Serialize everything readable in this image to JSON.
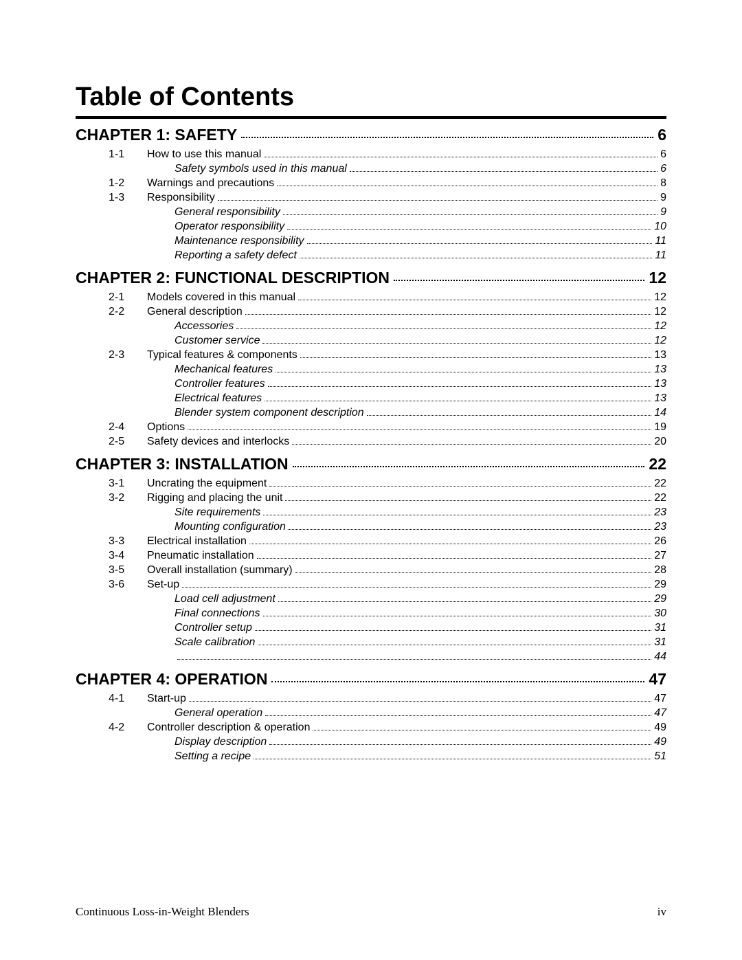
{
  "title": "Table of Contents",
  "chapters": [
    {
      "label": "CHAPTER 1: SAFETY",
      "page": "6",
      "items": [
        {
          "type": "section",
          "num": "1-1",
          "label": "How to use this manual",
          "page": "6"
        },
        {
          "type": "sub",
          "label": "Safety symbols used in this manual",
          "page": "6"
        },
        {
          "type": "section",
          "num": "1-2",
          "label": "Warnings and precautions",
          "page": "8"
        },
        {
          "type": "section",
          "num": "1-3",
          "label": "Responsibility",
          "page": "9"
        },
        {
          "type": "sub",
          "label": "General responsibility",
          "page": "9"
        },
        {
          "type": "sub",
          "label": "Operator responsibility",
          "page": "10"
        },
        {
          "type": "sub",
          "label": "Maintenance responsibility",
          "page": "11"
        },
        {
          "type": "sub",
          "label": "Reporting a safety defect",
          "page": "11"
        }
      ]
    },
    {
      "label": "CHAPTER 2:  FUNCTIONAL DESCRIPTION",
      "page": "12",
      "items": [
        {
          "type": "section",
          "num": "2-1",
          "label": "Models covered in this manual",
          "page": "12"
        },
        {
          "type": "section",
          "num": "2-2",
          "label": "General description",
          "page": "12"
        },
        {
          "type": "sub",
          "label": "Accessories",
          "page": "12"
        },
        {
          "type": "sub",
          "label": "Customer service",
          "page": "12"
        },
        {
          "type": "section",
          "num": "2-3",
          "label": "Typical features & components",
          "page": "13"
        },
        {
          "type": "sub",
          "label": "Mechanical features",
          "page": "13"
        },
        {
          "type": "sub",
          "label": "Controller features",
          "page": "13"
        },
        {
          "type": "sub",
          "label": "Electrical features",
          "page": "13"
        },
        {
          "type": "sub",
          "label": "Blender system component description",
          "page": "14"
        },
        {
          "type": "section",
          "num": "2-4",
          "label": "Options",
          "page": "19"
        },
        {
          "type": "section",
          "num": "2-5",
          "label": "Safety devices and interlocks",
          "page": "20"
        }
      ]
    },
    {
      "label": "CHAPTER 3: INSTALLATION",
      "page": "22",
      "items": [
        {
          "type": "section",
          "num": "3-1",
          "label": "Uncrating the equipment",
          "page": "22"
        },
        {
          "type": "section",
          "num": "3-2",
          "label": "Rigging and placing the unit",
          "page": "22"
        },
        {
          "type": "sub",
          "label": "Site requirements",
          "page": "23"
        },
        {
          "type": "sub",
          "label": "Mounting configuration",
          "page": "23"
        },
        {
          "type": "section",
          "num": "3-3",
          "label": "Electrical installation",
          "page": "26"
        },
        {
          "type": "section",
          "num": "3-4",
          "label": "Pneumatic installation",
          "page": "27"
        },
        {
          "type": "section",
          "num": "3-5",
          "label": "Overall installation (summary)",
          "page": "28"
        },
        {
          "type": "section",
          "num": "3-6",
          "label": "Set-up",
          "page": "29"
        },
        {
          "type": "sub",
          "label": "Load cell adjustment",
          "page": "29"
        },
        {
          "type": "sub",
          "label": "Final connections",
          "page": "30"
        },
        {
          "type": "sub",
          "label": "Controller setup",
          "page": "31"
        },
        {
          "type": "sub",
          "label": "Scale calibration",
          "page": "31"
        },
        {
          "type": "sub",
          "label": "",
          "page": "44"
        }
      ]
    },
    {
      "label": "CHAPTER 4: OPERATION",
      "page": "47",
      "items": [
        {
          "type": "section",
          "num": "4-1",
          "label": "Start-up",
          "page": "47"
        },
        {
          "type": "sub",
          "label": "General operation",
          "page": "47"
        },
        {
          "type": "section",
          "num": "4-2",
          "label": "Controller description & operation",
          "page": "49"
        },
        {
          "type": "sub",
          "label": "Display description",
          "page": "49"
        },
        {
          "type": "sub",
          "label": "Setting a recipe",
          "page": "51"
        }
      ]
    }
  ],
  "footer": {
    "left": "Continuous Loss-in-Weight Blenders",
    "right": "iv"
  }
}
